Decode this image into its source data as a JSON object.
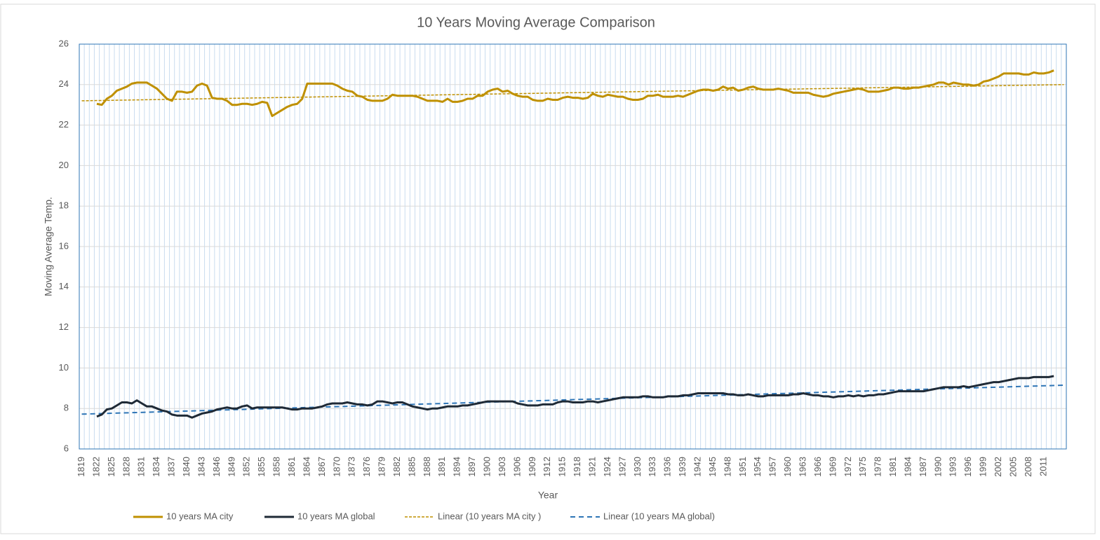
{
  "chart_data": {
    "type": "line",
    "title": "10 Years Moving Average Comparison",
    "x_label": "Year",
    "y_label": "Moving Average Temp.",
    "categories": [
      1819,
      null,
      null,
      1822,
      null,
      null,
      1825,
      null,
      null,
      1828,
      null,
      null,
      1831,
      null,
      null,
      1834,
      null,
      null,
      1837,
      null,
      null,
      1840,
      null,
      null,
      1843,
      null,
      null,
      1846,
      null,
      null,
      1849,
      null,
      null,
      1852,
      null,
      null,
      1855,
      null,
      null,
      1858,
      null,
      null,
      1861,
      null,
      null,
      1864,
      null,
      null,
      1867,
      null,
      null,
      1870,
      null,
      null,
      1873,
      null,
      null,
      1876,
      null,
      null,
      1879,
      null,
      null,
      1882,
      null,
      null,
      1885,
      null,
      null,
      1888,
      null,
      null,
      1891,
      null,
      null,
      1894,
      null,
      null,
      1897,
      null,
      null,
      1900,
      null,
      null,
      1903,
      null,
      null,
      1906,
      null,
      null,
      1909,
      null,
      null,
      1912,
      null,
      null,
      1915,
      null,
      null,
      1918,
      null,
      null,
      1921,
      null,
      null,
      1924,
      null,
      null,
      1927,
      null,
      null,
      1930,
      null,
      null,
      1933,
      null,
      null,
      1936,
      null,
      null,
      1939,
      null,
      null,
      1942,
      null,
      null,
      1945,
      null,
      null,
      1948,
      null,
      null,
      1951,
      null,
      null,
      1954,
      null,
      null,
      1957,
      null,
      null,
      1960,
      null,
      null,
      1963,
      null,
      null,
      1966,
      null,
      null,
      1969,
      null,
      null,
      1972,
      null,
      null,
      1975,
      null,
      null,
      1978,
      null,
      null,
      1981,
      null,
      null,
      1984,
      null,
      null,
      1987,
      null,
      null,
      1990,
      null,
      null,
      1993,
      null,
      null,
      1996,
      null,
      null,
      1999,
      null,
      null,
      2002,
      null,
      null,
      2005,
      null,
      null,
      2008,
      null,
      null,
      2011,
      null,
      null,
      null,
      null
    ],
    "series": [
      {
        "name": "10 years MA city",
        "color": "#bf9000",
        "values": [
          null,
          null,
          null,
          23.05,
          23.0,
          23.3,
          23.45,
          23.7,
          23.8,
          23.9,
          24.05,
          24.1,
          24.1,
          24.1,
          23.95,
          23.8,
          23.55,
          23.3,
          23.2,
          23.65,
          23.65,
          23.6,
          23.65,
          23.95,
          24.05,
          23.95,
          23.35,
          23.3,
          23.3,
          23.2,
          23.0,
          23.0,
          23.05,
          23.05,
          23.0,
          23.05,
          23.15,
          23.1,
          22.45,
          22.6,
          22.75,
          22.9,
          23.0,
          23.05,
          23.3,
          24.05,
          24.05,
          24.05,
          24.05,
          24.05,
          24.05,
          23.95,
          23.8,
          23.7,
          23.65,
          23.45,
          23.4,
          23.25,
          23.2,
          23.2,
          23.2,
          23.3,
          23.5,
          23.45,
          23.45,
          23.45,
          23.45,
          23.4,
          23.3,
          23.2,
          23.2,
          23.2,
          23.15,
          23.3,
          23.15,
          23.15,
          23.2,
          23.3,
          23.3,
          23.45,
          23.45,
          23.65,
          23.75,
          23.8,
          23.65,
          23.7,
          23.55,
          23.45,
          23.4,
          23.4,
          23.25,
          23.2,
          23.2,
          23.3,
          23.25,
          23.25,
          23.35,
          23.4,
          23.35,
          23.35,
          23.3,
          23.35,
          23.55,
          23.45,
          23.4,
          23.5,
          23.45,
          23.4,
          23.4,
          23.3,
          23.25,
          23.25,
          23.3,
          23.45,
          23.45,
          23.5,
          23.4,
          23.4,
          23.4,
          23.45,
          23.4,
          23.5,
          23.6,
          23.7,
          23.75,
          23.75,
          23.7,
          23.75,
          23.9,
          23.8,
          23.85,
          23.7,
          23.75,
          23.85,
          23.9,
          23.8,
          23.75,
          23.75,
          23.75,
          23.8,
          23.75,
          23.7,
          23.6,
          23.6,
          23.6,
          23.6,
          23.5,
          23.45,
          23.4,
          23.45,
          23.55,
          23.6,
          23.65,
          23.7,
          23.75,
          23.8,
          23.75,
          23.65,
          23.65,
          23.65,
          23.7,
          23.75,
          23.85,
          23.85,
          23.8,
          23.8,
          23.85,
          23.85,
          23.9,
          23.95,
          24.0,
          24.1,
          24.1,
          24.0,
          24.1,
          24.05,
          24.0,
          24.0,
          23.95,
          24.0,
          24.15,
          24.2,
          24.3,
          24.4,
          24.55,
          24.55,
          24.55,
          24.55,
          24.5,
          24.5,
          24.6,
          24.55,
          24.55,
          24.6,
          24.7,
          null,
          null
        ]
      },
      {
        "name": "10 years MA global",
        "color": "#1f2a36",
        "values": [
          null,
          null,
          null,
          7.6,
          7.7,
          7.95,
          8.0,
          8.15,
          8.3,
          8.3,
          8.25,
          8.4,
          8.25,
          8.1,
          8.1,
          8.0,
          7.9,
          7.85,
          7.7,
          7.65,
          7.65,
          7.65,
          7.55,
          7.65,
          7.75,
          7.8,
          7.85,
          7.95,
          8.0,
          8.05,
          8.0,
          8.0,
          8.1,
          8.15,
          8.0,
          8.05,
          8.05,
          8.05,
          8.05,
          8.05,
          8.05,
          8.0,
          7.95,
          7.95,
          8.0,
          8.0,
          8.0,
          8.05,
          8.1,
          8.2,
          8.25,
          8.25,
          8.25,
          8.3,
          8.25,
          8.2,
          8.2,
          8.15,
          8.2,
          8.35,
          8.35,
          8.3,
          8.25,
          8.3,
          8.3,
          8.2,
          8.1,
          8.05,
          8.0,
          7.95,
          8.0,
          8.0,
          8.05,
          8.1,
          8.1,
          8.1,
          8.15,
          8.15,
          8.2,
          8.25,
          8.3,
          8.35,
          8.35,
          8.35,
          8.35,
          8.35,
          8.35,
          8.25,
          8.2,
          8.15,
          8.15,
          8.15,
          8.2,
          8.2,
          8.2,
          8.3,
          8.35,
          8.35,
          8.3,
          8.3,
          8.3,
          8.35,
          8.35,
          8.3,
          8.35,
          8.4,
          8.45,
          8.5,
          8.55,
          8.55,
          8.55,
          8.55,
          8.6,
          8.6,
          8.55,
          8.55,
          8.55,
          8.6,
          8.6,
          8.6,
          8.65,
          8.65,
          8.7,
          8.75,
          8.75,
          8.75,
          8.75,
          8.75,
          8.75,
          8.7,
          8.7,
          8.65,
          8.65,
          8.7,
          8.65,
          8.6,
          8.6,
          8.65,
          8.65,
          8.65,
          8.65,
          8.65,
          8.7,
          8.7,
          8.75,
          8.7,
          8.65,
          8.65,
          8.6,
          8.6,
          8.55,
          8.6,
          8.6,
          8.65,
          8.6,
          8.65,
          8.6,
          8.65,
          8.65,
          8.7,
          8.7,
          8.75,
          8.8,
          8.85,
          8.85,
          8.85,
          8.85,
          8.85,
          8.85,
          8.9,
          8.95,
          9.0,
          9.05,
          9.05,
          9.05,
          9.05,
          9.1,
          9.05,
          9.1,
          9.15,
          9.2,
          9.25,
          9.3,
          9.3,
          9.35,
          9.4,
          9.45,
          9.5,
          9.5,
          9.5,
          9.55,
          9.55,
          9.55,
          9.55,
          9.6,
          null,
          null
        ]
      }
    ],
    "trendlines": [
      {
        "name": "Linear (10 years MA city )",
        "color": "#bf9000",
        "values": [
          23.2,
          24.0
        ]
      },
      {
        "name": "Linear (10 years MA global)",
        "color": "#2e75b6",
        "values": [
          7.72,
          9.15
        ]
      }
    ],
    "ylim": [
      6,
      26
    ],
    "yticks": [
      6,
      8,
      10,
      12,
      14,
      16,
      18,
      20,
      22,
      24,
      26
    ],
    "grid": true,
    "legend": "bottom"
  }
}
